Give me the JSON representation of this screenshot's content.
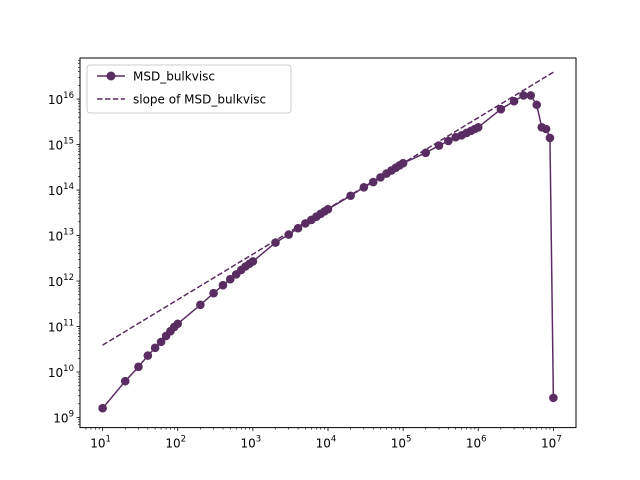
{
  "chart_data": {
    "type": "line",
    "title": "",
    "xlabel": "",
    "ylabel": "",
    "xscale": "log",
    "yscale": "log",
    "xlim": [
      5,
      20000000
    ],
    "ylim": [
      600000000,
      8e+16
    ],
    "grid": false,
    "legend_position": "upper-left",
    "x_ticks": [
      {
        "base": "10",
        "exp": "1",
        "value": 10
      },
      {
        "base": "10",
        "exp": "2",
        "value": 100
      },
      {
        "base": "10",
        "exp": "3",
        "value": 1000
      },
      {
        "base": "10",
        "exp": "4",
        "value": 10000
      },
      {
        "base": "10",
        "exp": "5",
        "value": 100000
      },
      {
        "base": "10",
        "exp": "6",
        "value": 1000000
      },
      {
        "base": "10",
        "exp": "7",
        "value": 10000000
      }
    ],
    "y_ticks": [
      {
        "base": "10",
        "exp": "9",
        "value": 1000000000.0
      },
      {
        "base": "10",
        "exp": "10",
        "value": 10000000000.0
      },
      {
        "base": "10",
        "exp": "11",
        "value": 100000000000.0
      },
      {
        "base": "10",
        "exp": "12",
        "value": 1000000000000.0
      },
      {
        "base": "10",
        "exp": "13",
        "value": 10000000000000.0
      },
      {
        "base": "10",
        "exp": "14",
        "value": 100000000000000.0
      },
      {
        "base": "10",
        "exp": "15",
        "value": 1000000000000000.0
      },
      {
        "base": "10",
        "exp": "16",
        "value": 1e+16
      }
    ],
    "series": [
      {
        "name": "MSD_bulkvisc",
        "style": "solid-with-circle-markers",
        "color": "#5a2d62",
        "x": [
          10,
          20,
          30,
          40,
          50,
          60,
          70,
          80,
          90,
          100,
          200,
          300,
          400,
          500,
          600,
          700,
          800,
          900,
          1000,
          2000,
          3000,
          4000,
          5000,
          6000,
          7000,
          8000,
          9000,
          10000,
          20000,
          30000,
          40000,
          50000,
          60000,
          70000,
          80000,
          90000,
          100000,
          200000,
          300000,
          400000,
          500000,
          600000,
          700000,
          800000,
          900000,
          1000000,
          2000000,
          3000000,
          4000000,
          5000000,
          6000000,
          7000000,
          8000000,
          9000000,
          10000000
        ],
        "y": [
          1600000000.0,
          6300000000.0,
          13000000000.0,
          23000000000.0,
          34000000000.0,
          46000000000.0,
          62000000000.0,
          79000000000.0,
          98000000000.0,
          115000000000.0,
          300000000000.0,
          540000000000.0,
          810000000000.0,
          1100000000000.0,
          1400000000000.0,
          1750000000000.0,
          2100000000000.0,
          2400000000000.0,
          2700000000000.0,
          7000000000000.0,
          10500000000000.0,
          14500000000000.0,
          18500000000000.0,
          22000000000000.0,
          26000000000000.0,
          30000000000000.0,
          34000000000000.0,
          38000000000000.0,
          75000000000000.0,
          115000000000000.0,
          150000000000000.0,
          190000000000000.0,
          230000000000000.0,
          270000000000000.0,
          310000000000000.0,
          350000000000000.0,
          390000000000000.0,
          660000000000000.0,
          950000000000000.0,
          1200000000000000.0,
          1450000000000000.0,
          1600000000000000.0,
          1800000000000000.0,
          2000000000000000.0,
          2200000000000000.0,
          2400000000000000.0,
          6000000000000000.0,
          9000000000000000.0,
          1.2e+16,
          1.2e+16,
          7500000000000000.0,
          2400000000000000.0,
          2200000000000000.0,
          1400000000000000.0,
          2700000000.0
        ]
      },
      {
        "name": "slope of MSD_bulkvisc",
        "style": "dashed",
        "color": "#5a2d62",
        "x": [
          10,
          10000000
        ],
        "y": [
          39000000000.0,
          3.9e+16
        ]
      }
    ]
  }
}
